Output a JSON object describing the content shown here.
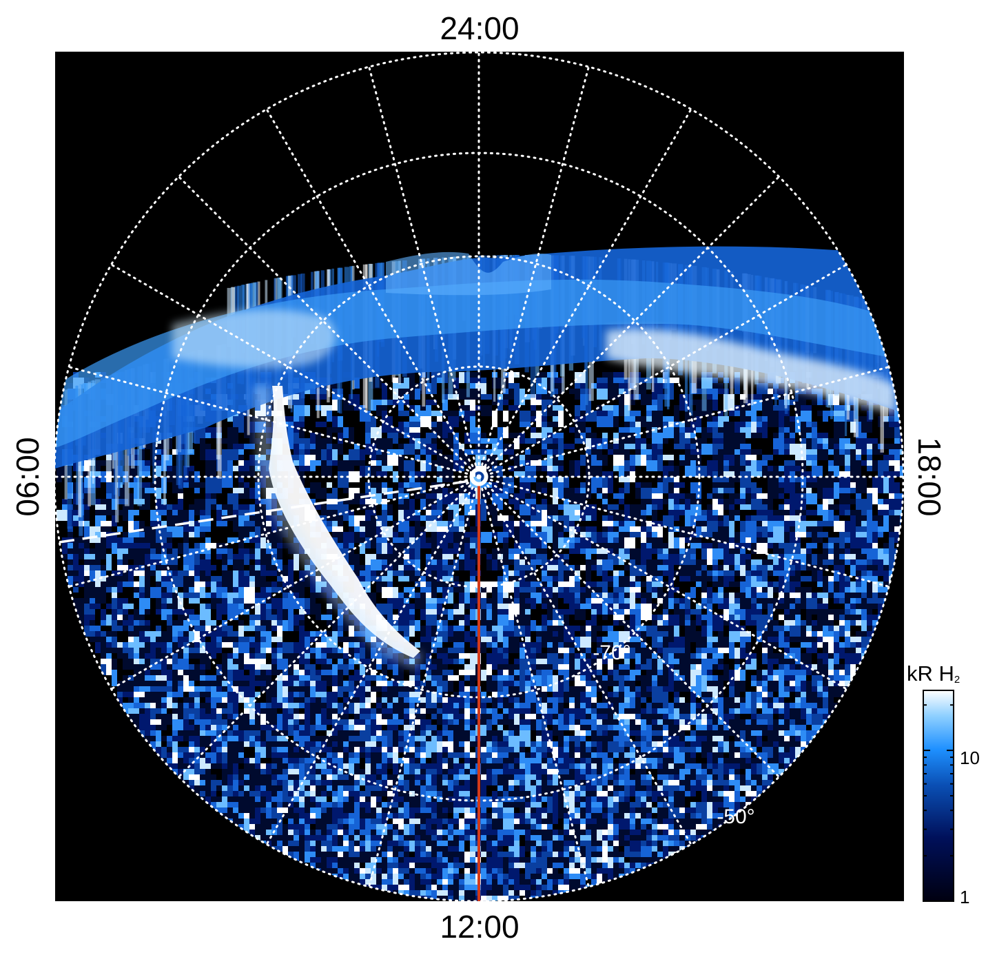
{
  "figure": {
    "local_time_labels": {
      "top": "24:00",
      "bottom": "12:00",
      "left": "06:00",
      "right": "18:00"
    },
    "latitude_labels": {
      "inner": "-70°",
      "outer": "-50°"
    },
    "colorbar": {
      "title_main": "kR H",
      "title_sub": "2",
      "scale": "log",
      "range": [
        1,
        25
      ],
      "tick_labels": [
        "10",
        "1"
      ],
      "colors": [
        "#000010",
        "#00105a",
        "#0a4fb4",
        "#1e90ff",
        "#8fd0ff",
        "#ffffff"
      ]
    },
    "colors": {
      "background": "#000000",
      "grid": "#ffffff",
      "meridian_line": "#d23a1a"
    }
  }
}
